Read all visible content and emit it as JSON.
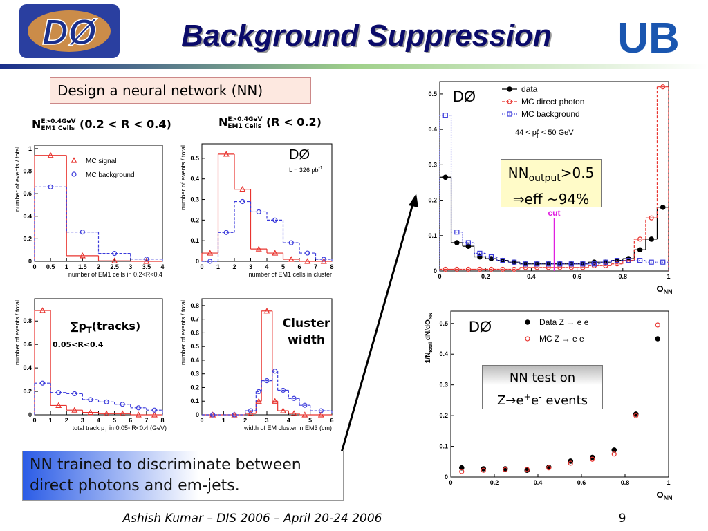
{
  "header": {
    "title": "Background Suppression",
    "logo_left": "DØ",
    "logo_right": "UB"
  },
  "intro": "Design a neural network (NN)",
  "var_labels": [
    {
      "main": "N",
      "sup": "E>0.4GeV",
      "sub": "EM1 Cells",
      "rest": " (0.2 < R < 0.4)"
    },
    {
      "main": "N",
      "sup": "E>0.4GeV",
      "sub": "EM1 Cells",
      "rest": " (R < 0.2)"
    },
    {
      "main": "∑p",
      "sub": "T",
      "rest": "(tracks)",
      "range": "0.05<R<0.4"
    },
    {
      "line1": "Cluster",
      "line2": "width"
    }
  ],
  "charts": [
    {
      "type": "histogram",
      "xlabel": "number of EM1 cells in 0.2<R<0.4",
      "ylabel": "number of events / total",
      "xlim": [
        0,
        4
      ],
      "ylim": [
        0,
        1.03
      ],
      "xticks": [
        0,
        0.5,
        1,
        1.5,
        2,
        2.5,
        3,
        3.5,
        4
      ],
      "yticks": [
        0,
        0.2,
        0.4,
        0.6,
        0.8,
        1
      ],
      "bins": [
        0,
        1,
        2,
        3,
        4
      ],
      "series": [
        {
          "name": "MC signal",
          "color": "#e8342f",
          "line": "solid",
          "marker": "triangle",
          "values": [
            0.94,
            0.05,
            0.005,
            0
          ]
        },
        {
          "name": "MC background",
          "color": "#3b3bdb",
          "line": "dashed",
          "marker": "circle",
          "values": [
            0.66,
            0.26,
            0.07,
            0.02
          ]
        }
      ]
    },
    {
      "type": "histogram",
      "xlabel": "number of EM1 cells in cluster",
      "ylabel": "number of events / total",
      "xlim": [
        0,
        8
      ],
      "ylim": [
        0,
        0.57
      ],
      "xticks": [
        0,
        1,
        2,
        3,
        4,
        5,
        6,
        7,
        8
      ],
      "yticks": [
        0,
        0.1,
        0.2,
        0.3,
        0.4,
        0.5
      ],
      "bins": [
        0,
        1,
        2,
        3,
        4,
        5,
        6,
        7,
        8
      ],
      "annotations": {
        "experiment": "DØ",
        "lumi": "L = 326 pb",
        "lumi_exp": "-1"
      },
      "series": [
        {
          "color": "#e8342f",
          "line": "solid",
          "marker": "triangle",
          "values": [
            0.04,
            0.52,
            0.35,
            0.06,
            0.04,
            0.01,
            0,
            0
          ]
        },
        {
          "color": "#3b3bdb",
          "line": "dashed",
          "marker": "circle",
          "values": [
            0,
            0.14,
            0.29,
            0.24,
            0.2,
            0.09,
            0.04,
            0.01
          ]
        }
      ]
    },
    {
      "type": "histogram",
      "xlabel": [
        "total track p",
        "T",
        " in 0.05<R<0.4 (GeV)"
      ],
      "ylabel": "number of events / total",
      "xlim": [
        0,
        8
      ],
      "ylim": [
        0,
        0.99
      ],
      "xticks": [
        0,
        1,
        2,
        3,
        4,
        5,
        6,
        7,
        8
      ],
      "yticks": [
        0,
        0.2,
        0.4,
        0.6,
        0.8
      ],
      "bins": [
        0,
        1,
        2,
        3,
        4,
        5,
        6,
        7,
        8
      ],
      "series": [
        {
          "color": "#e8342f",
          "line": "solid",
          "marker": "triangle",
          "values": [
            0.89,
            0.08,
            0.04,
            0.02,
            0.01,
            0.01,
            0,
            0
          ]
        },
        {
          "color": "#3b3bdb",
          "line": "dashed",
          "marker": "circle",
          "values": [
            0.27,
            0.19,
            0.18,
            0.13,
            0.11,
            0.09,
            0.06,
            0.04
          ]
        }
      ]
    },
    {
      "type": "histogram",
      "xlabel": "width of EM cluster in EM3 (cm)",
      "ylabel": "number of events / total",
      "xlim": [
        0,
        6
      ],
      "ylim": [
        0,
        0.85
      ],
      "xticks": [
        0,
        1,
        2,
        3,
        4,
        5,
        6
      ],
      "yticks": [
        0,
        0.1,
        0.2,
        0.3,
        0.4,
        0.5,
        0.6,
        0.7,
        0.8
      ],
      "bins": [
        0,
        1,
        2,
        2.5,
        2.75,
        3.25,
        3.5,
        4,
        4.5,
        5,
        6
      ],
      "series": [
        {
          "color": "#e8342f",
          "line": "solid",
          "marker": "triangle",
          "values": [
            0,
            0,
            0.01,
            0.1,
            0.76,
            0.1,
            0.03,
            0.01,
            0,
            0
          ]
        },
        {
          "color": "#3b3bdb",
          "line": "dashed",
          "marker": "circle",
          "values": [
            0,
            0,
            0.03,
            0.17,
            0.25,
            0.32,
            0.18,
            0.12,
            0.07,
            0.03
          ]
        }
      ]
    },
    {
      "type": "histogram",
      "xlabel": [
        "O",
        "NN"
      ],
      "xlim": [
        0,
        1
      ],
      "ylim": [
        0,
        0.535
      ],
      "xticks": [
        0,
        0.2,
        0.4,
        0.6,
        0.8,
        1
      ],
      "yticks": [
        0,
        0.1,
        0.2,
        0.3,
        0.4,
        0.5
      ],
      "bins": [
        0,
        0.05,
        0.1,
        0.15,
        0.2,
        0.25,
        0.3,
        0.35,
        0.4,
        0.45,
        0.5,
        0.55,
        0.6,
        0.65,
        0.7,
        0.75,
        0.8,
        0.85,
        0.9,
        0.95,
        1
      ],
      "annotations": {
        "experiment": "DØ",
        "range_a": "44 < p",
        "range_sup": "γ",
        "range_sub": "T",
        "range_b": " < 50 GeV"
      },
      "cut": {
        "label": "cut",
        "value": 0.5
      },
      "series": [
        {
          "name": "data",
          "color": "#000000",
          "line": "solid",
          "marker": "dot",
          "values": [
            0.265,
            0.08,
            0.07,
            0.04,
            0.035,
            0.03,
            0.025,
            0.02,
            0.02,
            0.02,
            0.02,
            0.02,
            0.02,
            0.025,
            0.025,
            0.03,
            0.035,
            0.06,
            0.09,
            0.18
          ]
        },
        {
          "name": "MC direct photon",
          "color": "#e8342f",
          "line": "dashed",
          "marker": "circle",
          "values": [
            0.005,
            0.005,
            0.005,
            0.005,
            0.005,
            0.005,
            0.005,
            0.01,
            0.01,
            0.01,
            0.01,
            0.01,
            0.01,
            0.015,
            0.015,
            0.02,
            0.03,
            0.09,
            0.15,
            0.52
          ]
        },
        {
          "name": "MC background",
          "color": "#3b3bdb",
          "line": "dotted",
          "marker": "square",
          "values": [
            0.44,
            0.11,
            0.08,
            0.05,
            0.04,
            0.03,
            0.025,
            0.02,
            0.02,
            0.02,
            0.02,
            0.02,
            0.02,
            0.02,
            0.025,
            0.03,
            0.03,
            0.03,
            0.025,
            0.025
          ]
        }
      ]
    },
    {
      "type": "scatter",
      "xlabel": [
        "O",
        "NN"
      ],
      "ylabel": [
        "1/N",
        "total",
        " dN/dO",
        "NN"
      ],
      "xlim": [
        0,
        1
      ],
      "ylim": [
        0,
        0.54
      ],
      "xticks": [
        0,
        0.2,
        0.4,
        0.6,
        0.8,
        1
      ],
      "yticks": [
        0,
        0.1,
        0.2,
        0.3,
        0.4,
        0.5
      ],
      "x": [
        0.05,
        0.15,
        0.25,
        0.35,
        0.45,
        0.55,
        0.65,
        0.75,
        0.85,
        0.95
      ],
      "annotations": {
        "experiment": "DØ"
      },
      "series": [
        {
          "name": "Data Z → e e",
          "color": "#000000",
          "marker": "dot",
          "values": [
            0.03,
            0.027,
            0.027,
            0.022,
            0.032,
            0.052,
            0.064,
            0.088,
            0.205,
            0.45
          ]
        },
        {
          "name": "MC Z → e e",
          "color": "#e8342f",
          "marker": "circle",
          "values": [
            0.018,
            0.022,
            0.024,
            0.025,
            0.03,
            0.045,
            0.058,
            0.075,
            0.2,
            0.495
          ]
        }
      ]
    }
  ],
  "callouts": {
    "efficiency": {
      "main": "NN",
      "sub": "output",
      "rest": ">0.5",
      "line2": "⇒eff ~94%"
    },
    "test": {
      "line1": "NN test on",
      "a": "Z→e",
      "sup1": "+",
      "b": "e",
      "sup2": "-",
      "c": " events"
    },
    "summary": "NN trained to discriminate between direct photons and em-jets."
  },
  "footer": {
    "text": "Ashish Kumar – DIS 2006 – April 20-24 2006",
    "page": "9"
  }
}
